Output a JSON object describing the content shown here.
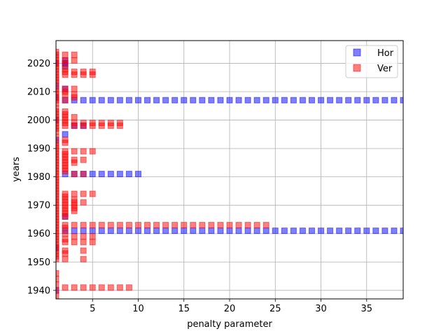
{
  "chart_data": {
    "type": "scatter",
    "title": "",
    "xlabel": "penalty parameter",
    "ylabel": "years",
    "xlim": [
      1,
      39
    ],
    "ylim": [
      1937,
      2028
    ],
    "xticks": [
      5,
      10,
      15,
      20,
      25,
      30,
      35
    ],
    "yticks": [
      1940,
      1950,
      1960,
      1970,
      1980,
      1990,
      2000,
      2010,
      2020
    ],
    "grid": true,
    "legend_position": "top-right",
    "marker": "square",
    "series": [
      {
        "name": "Hor",
        "color": "#0000ff",
        "points": [
          [
            1,
            1940
          ],
          [
            1,
            1955
          ],
          [
            1,
            1993
          ],
          [
            1,
            2000
          ],
          [
            1,
            2008
          ],
          [
            1,
            2012
          ],
          [
            1,
            2020
          ],
          [
            2,
            1961
          ],
          [
            2,
            1966
          ],
          [
            2,
            1981
          ],
          [
            2,
            1995
          ],
          [
            2,
            2007
          ],
          [
            2,
            2011
          ],
          [
            2,
            2019
          ],
          [
            2,
            2020
          ],
          [
            2,
            2021
          ],
          [
            3,
            1961
          ],
          [
            3,
            1981
          ],
          [
            3,
            1998
          ],
          [
            3,
            2007
          ],
          [
            4,
            1961
          ],
          [
            4,
            1981
          ],
          [
            4,
            1998
          ],
          [
            4,
            2007
          ],
          [
            5,
            1961
          ],
          [
            5,
            1981
          ],
          [
            5,
            2007
          ],
          [
            6,
            1961
          ],
          [
            6,
            1981
          ],
          [
            6,
            2007
          ],
          [
            7,
            1961
          ],
          [
            7,
            1981
          ],
          [
            7,
            2007
          ],
          [
            8,
            1961
          ],
          [
            8,
            1981
          ],
          [
            8,
            2007
          ],
          [
            9,
            1961
          ],
          [
            9,
            1981
          ],
          [
            9,
            2007
          ],
          [
            10,
            1961
          ],
          [
            10,
            1981
          ],
          [
            10,
            2007
          ],
          [
            11,
            1961
          ],
          [
            11,
            2007
          ],
          [
            12,
            1961
          ],
          [
            12,
            2007
          ],
          [
            13,
            1961
          ],
          [
            13,
            2007
          ],
          [
            14,
            1961
          ],
          [
            14,
            2007
          ],
          [
            15,
            1961
          ],
          [
            15,
            2007
          ],
          [
            16,
            1961
          ],
          [
            16,
            2007
          ],
          [
            17,
            1961
          ],
          [
            17,
            2007
          ],
          [
            18,
            1961
          ],
          [
            18,
            2007
          ],
          [
            19,
            1961
          ],
          [
            19,
            2007
          ],
          [
            20,
            1961
          ],
          [
            20,
            2007
          ],
          [
            21,
            1961
          ],
          [
            21,
            2007
          ],
          [
            22,
            1961
          ],
          [
            22,
            2007
          ],
          [
            23,
            1961
          ],
          [
            23,
            2007
          ],
          [
            24,
            1961
          ],
          [
            24,
            2007
          ],
          [
            25,
            1961
          ],
          [
            25,
            2007
          ],
          [
            26,
            1961
          ],
          [
            26,
            2007
          ],
          [
            27,
            1961
          ],
          [
            27,
            2007
          ],
          [
            28,
            1961
          ],
          [
            28,
            2007
          ],
          [
            29,
            1961
          ],
          [
            29,
            2007
          ],
          [
            30,
            1961
          ],
          [
            30,
            2007
          ],
          [
            31,
            1961
          ],
          [
            31,
            2007
          ],
          [
            32,
            1961
          ],
          [
            32,
            2007
          ],
          [
            33,
            1961
          ],
          [
            33,
            2007
          ],
          [
            34,
            1961
          ],
          [
            34,
            2007
          ],
          [
            35,
            1961
          ],
          [
            35,
            2007
          ],
          [
            36,
            1961
          ],
          [
            36,
            2007
          ],
          [
            37,
            1961
          ],
          [
            37,
            2007
          ],
          [
            38,
            1961
          ],
          [
            38,
            2007
          ],
          [
            39,
            1961
          ],
          [
            39,
            2007
          ]
        ]
      },
      {
        "name": "Ver",
        "color": "#ff0000",
        "points": [
          [
            1,
            1938
          ],
          [
            1,
            1940
          ],
          [
            1,
            1942
          ],
          [
            1,
            1944
          ],
          [
            1,
            1946
          ],
          [
            1,
            1951
          ],
          [
            1,
            1952
          ],
          [
            1,
            1953
          ],
          [
            1,
            1954
          ],
          [
            1,
            1955
          ],
          [
            1,
            1956
          ],
          [
            1,
            1957
          ],
          [
            1,
            1958
          ],
          [
            1,
            1959
          ],
          [
            1,
            1960
          ],
          [
            1,
            1961
          ],
          [
            1,
            1962
          ],
          [
            1,
            1963
          ],
          [
            1,
            1964
          ],
          [
            1,
            1965
          ],
          [
            1,
            1966
          ],
          [
            1,
            1967
          ],
          [
            1,
            1968
          ],
          [
            1,
            1969
          ],
          [
            1,
            1970
          ],
          [
            1,
            1971
          ],
          [
            1,
            1972
          ],
          [
            1,
            1973
          ],
          [
            1,
            1974
          ],
          [
            1,
            1975
          ],
          [
            1,
            1976
          ],
          [
            1,
            1977
          ],
          [
            1,
            1978
          ],
          [
            1,
            1979
          ],
          [
            1,
            1980
          ],
          [
            1,
            1981
          ],
          [
            1,
            1982
          ],
          [
            1,
            1983
          ],
          [
            1,
            1984
          ],
          [
            1,
            1985
          ],
          [
            1,
            1986
          ],
          [
            1,
            1987
          ],
          [
            1,
            1988
          ],
          [
            1,
            1989
          ],
          [
            1,
            1990
          ],
          [
            1,
            1991
          ],
          [
            1,
            1992
          ],
          [
            1,
            1994
          ],
          [
            1,
            1996
          ],
          [
            1,
            1997
          ],
          [
            1,
            1998
          ],
          [
            1,
            1999
          ],
          [
            1,
            2000
          ],
          [
            1,
            2001
          ],
          [
            1,
            2002
          ],
          [
            1,
            2003
          ],
          [
            1,
            2004
          ],
          [
            1,
            2006
          ],
          [
            1,
            2007
          ],
          [
            1,
            2008
          ],
          [
            1,
            2009
          ],
          [
            1,
            2010
          ],
          [
            1,
            2011
          ],
          [
            1,
            2013
          ],
          [
            1,
            2014
          ],
          [
            1,
            2015
          ],
          [
            1,
            2016
          ],
          [
            1,
            2017
          ],
          [
            1,
            2018
          ],
          [
            1,
            2019
          ],
          [
            1,
            2020
          ],
          [
            1,
            2021
          ],
          [
            1,
            2022
          ],
          [
            1,
            2023
          ],
          [
            1,
            2024
          ],
          [
            2,
            1941
          ],
          [
            2,
            1951
          ],
          [
            2,
            1953
          ],
          [
            2,
            1954
          ],
          [
            2,
            1957
          ],
          [
            2,
            1958
          ],
          [
            2,
            1960
          ],
          [
            2,
            1962
          ],
          [
            2,
            1963
          ],
          [
            2,
            1966
          ],
          [
            2,
            1967
          ],
          [
            2,
            1968
          ],
          [
            2,
            1969
          ],
          [
            2,
            1970
          ],
          [
            2,
            1971
          ],
          [
            2,
            1972
          ],
          [
            2,
            1973
          ],
          [
            2,
            1974
          ],
          [
            2,
            1982
          ],
          [
            2,
            1983
          ],
          [
            2,
            1984
          ],
          [
            2,
            1985
          ],
          [
            2,
            1986
          ],
          [
            2,
            1987
          ],
          [
            2,
            1988
          ],
          [
            2,
            1989
          ],
          [
            2,
            1992
          ],
          [
            2,
            1993
          ],
          [
            2,
            1998
          ],
          [
            2,
            1999
          ],
          [
            2,
            2000
          ],
          [
            2,
            2001
          ],
          [
            2,
            2002
          ],
          [
            2,
            2003
          ],
          [
            2,
            2007
          ],
          [
            2,
            2009
          ],
          [
            2,
            2010
          ],
          [
            2,
            2011
          ],
          [
            2,
            2016
          ],
          [
            2,
            2017
          ],
          [
            2,
            2018
          ],
          [
            2,
            2020
          ],
          [
            2,
            2021
          ],
          [
            2,
            2023
          ],
          [
            3,
            1941
          ],
          [
            3,
            1957
          ],
          [
            3,
            1959
          ],
          [
            3,
            1963
          ],
          [
            3,
            1968
          ],
          [
            3,
            1969
          ],
          [
            3,
            1970
          ],
          [
            3,
            1971
          ],
          [
            3,
            1972
          ],
          [
            3,
            1974
          ],
          [
            3,
            1981
          ],
          [
            3,
            1985
          ],
          [
            3,
            1986
          ],
          [
            3,
            1989
          ],
          [
            3,
            1998
          ],
          [
            3,
            1999
          ],
          [
            3,
            2001
          ],
          [
            3,
            2008
          ],
          [
            3,
            2009
          ],
          [
            3,
            2011
          ],
          [
            3,
            2016
          ],
          [
            3,
            2017
          ],
          [
            3,
            2021
          ],
          [
            3,
            2023
          ],
          [
            4,
            1941
          ],
          [
            4,
            1951
          ],
          [
            4,
            1954
          ],
          [
            4,
            1957
          ],
          [
            4,
            1959
          ],
          [
            4,
            1963
          ],
          [
            4,
            1971
          ],
          [
            4,
            1974
          ],
          [
            4,
            1981
          ],
          [
            4,
            1986
          ],
          [
            4,
            1989
          ],
          [
            4,
            1998
          ],
          [
            4,
            1999
          ],
          [
            4,
            2016
          ],
          [
            4,
            2017
          ],
          [
            5,
            1941
          ],
          [
            5,
            1957
          ],
          [
            5,
            1959
          ],
          [
            5,
            1963
          ],
          [
            5,
            1974
          ],
          [
            5,
            1989
          ],
          [
            5,
            1998
          ],
          [
            5,
            1999
          ],
          [
            5,
            2016
          ],
          [
            5,
            2017
          ],
          [
            6,
            1941
          ],
          [
            6,
            1963
          ],
          [
            6,
            1998
          ],
          [
            6,
            1999
          ],
          [
            7,
            1941
          ],
          [
            7,
            1963
          ],
          [
            7,
            1998
          ],
          [
            7,
            1999
          ],
          [
            8,
            1941
          ],
          [
            8,
            1963
          ],
          [
            8,
            1998
          ],
          [
            8,
            1999
          ],
          [
            9,
            1941
          ],
          [
            9,
            1963
          ],
          [
            10,
            1963
          ],
          [
            11,
            1963
          ],
          [
            12,
            1963
          ],
          [
            13,
            1963
          ],
          [
            14,
            1963
          ],
          [
            15,
            1963
          ],
          [
            16,
            1963
          ],
          [
            17,
            1963
          ],
          [
            18,
            1963
          ],
          [
            19,
            1963
          ],
          [
            20,
            1963
          ],
          [
            21,
            1963
          ],
          [
            22,
            1963
          ],
          [
            23,
            1963
          ],
          [
            24,
            1963
          ]
        ]
      }
    ]
  }
}
